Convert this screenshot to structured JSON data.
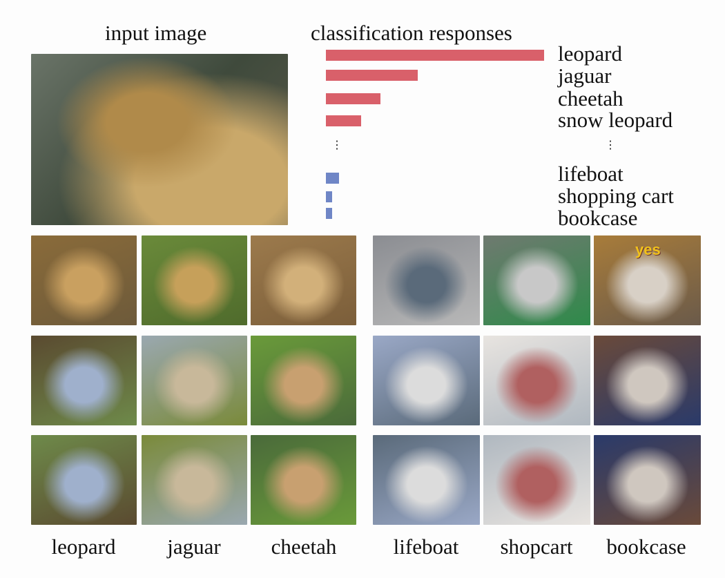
{
  "titles": {
    "input": "input image",
    "responses": "classification responses"
  },
  "chart_data": {
    "type": "bar",
    "orientation": "horizontal",
    "categories": [
      "leopard",
      "jaguar",
      "cheetah",
      "snow leopard",
      "lifeboat",
      "shopping cart",
      "bookcase"
    ],
    "values": [
      1.0,
      0.42,
      0.25,
      0.16,
      0.06,
      0.03,
      0.03
    ],
    "colors": [
      "#d9606a",
      "#d9606a",
      "#d9606a",
      "#d9606a",
      "#6f86c6",
      "#6f86c6",
      "#6f86c6"
    ],
    "ellipsis": "⋮"
  },
  "grid_labels": [
    "leopard",
    "jaguar",
    "cheetah",
    "lifeboat",
    "shopcart",
    "bookcase"
  ],
  "bookcase_sign": "yes"
}
